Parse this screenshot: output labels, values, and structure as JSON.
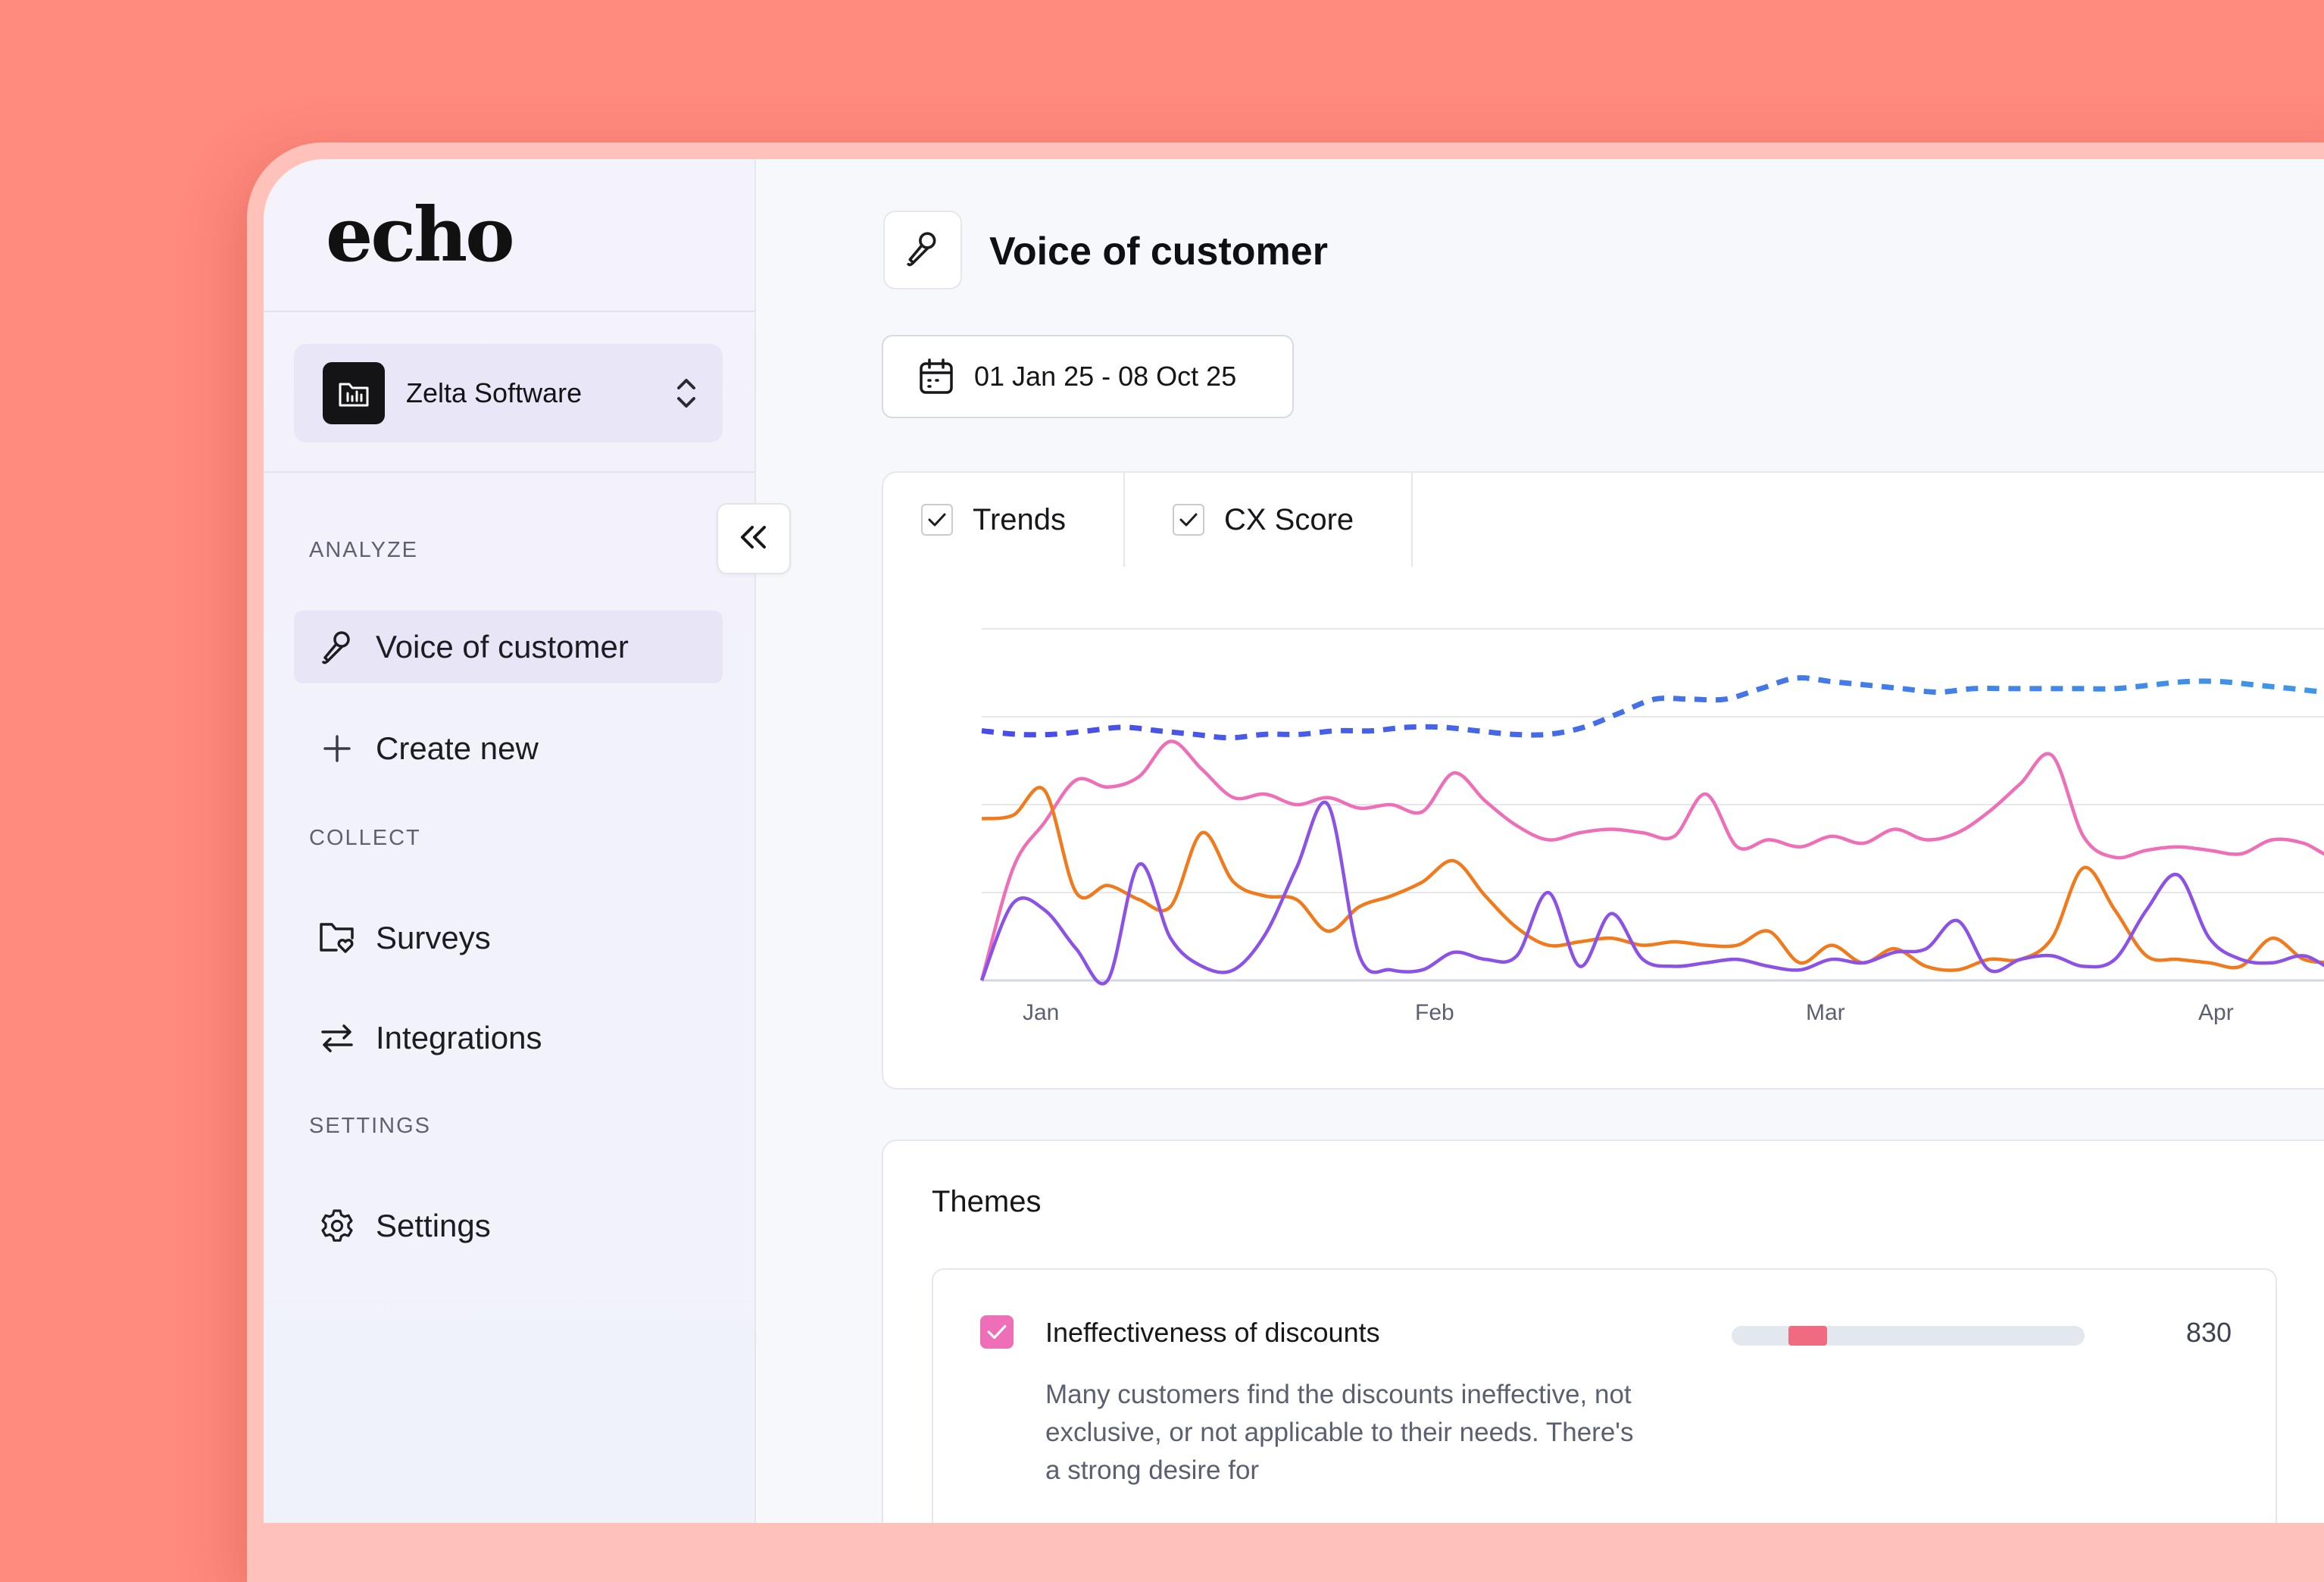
{
  "app": {
    "logo": "echo"
  },
  "workspace": {
    "name": "Zelta Software"
  },
  "sidebar": {
    "sections": [
      {
        "label": "ANALYZE"
      },
      {
        "label": "COLLECT"
      },
      {
        "label": "SETTINGS"
      }
    ],
    "items": [
      {
        "label": "Voice of customer",
        "icon": "microphone-icon",
        "active": true
      },
      {
        "label": "Create new",
        "icon": "plus-icon"
      },
      {
        "label": "Surveys",
        "icon": "folder-heart-icon"
      },
      {
        "label": "Integrations",
        "icon": "arrows-exchange-icon"
      },
      {
        "label": "Settings",
        "icon": "gear-icon"
      }
    ]
  },
  "header": {
    "title": "Voice of customer",
    "icon": "microphone-icon"
  },
  "date_range": {
    "label": "01 Jan 25 - 08 Oct 25",
    "icon": "calendar-icon"
  },
  "chart_toggles": [
    {
      "label": "Trends",
      "checked": true
    },
    {
      "label": "CX Score",
      "checked": true
    }
  ],
  "chart_data": {
    "type": "line",
    "x_labels": [
      "Jan",
      "Feb",
      "Mar",
      "Apr"
    ],
    "grid": true,
    "series": [
      {
        "color": "#4A4AE8",
        "color_end": "#3E9BE8",
        "style": "dashed",
        "values": [
          71,
          70,
          70,
          71,
          72,
          71,
          70,
          69,
          70,
          70,
          71,
          71,
          72,
          72,
          71,
          70,
          70,
          72,
          76,
          80,
          80,
          80,
          83,
          86,
          85,
          84,
          83,
          82,
          83,
          83,
          83,
          83,
          83,
          84,
          85,
          85,
          84,
          83,
          82,
          82,
          82
        ]
      },
      {
        "color": "#EE6FB8",
        "style": "solid",
        "values": [
          0,
          32,
          45,
          57,
          55,
          58,
          68,
          60,
          52,
          53,
          50,
          52,
          49,
          50,
          48,
          59,
          51,
          44,
          40,
          42,
          43,
          42,
          41,
          53,
          38,
          40,
          38,
          41,
          39,
          43,
          40,
          42,
          48,
          56,
          64,
          41,
          35,
          37,
          38,
          37,
          36,
          40,
          39,
          35,
          39,
          37
        ]
      },
      {
        "color": "#F07A1C",
        "style": "solid",
        "values": [
          46,
          47,
          54,
          25,
          27,
          23,
          21,
          42,
          28,
          24,
          23,
          14,
          21,
          24,
          28,
          34,
          24,
          15,
          10,
          11,
          12,
          10,
          11,
          10,
          10,
          14,
          5,
          10,
          5,
          9,
          4,
          3,
          6,
          6,
          12,
          32,
          20,
          7,
          6,
          5,
          4,
          12,
          6,
          5,
          4,
          3
        ]
      },
      {
        "color": "#8C52E6",
        "style": "solid",
        "values": [
          0,
          22,
          20,
          9,
          0,
          33,
          12,
          4,
          3,
          13,
          32,
          50,
          7,
          3,
          3,
          8,
          6,
          7,
          25,
          4,
          19,
          6,
          4,
          5,
          6,
          4,
          3,
          6,
          5,
          8,
          9,
          17,
          3,
          6,
          7,
          4,
          6,
          20,
          30,
          12,
          6,
          5,
          7,
          3,
          4,
          3
        ]
      }
    ]
  },
  "themes": {
    "title": "Themes",
    "items": [
      {
        "name": "Ineffectiveness of discounts",
        "count": "830",
        "checked": true,
        "bar_start": 0.16,
        "bar_end": 0.27,
        "description": "Many customers find the discounts ineffective, not exclusive, or not applicable to their needs. There's a strong desire for"
      }
    ]
  }
}
